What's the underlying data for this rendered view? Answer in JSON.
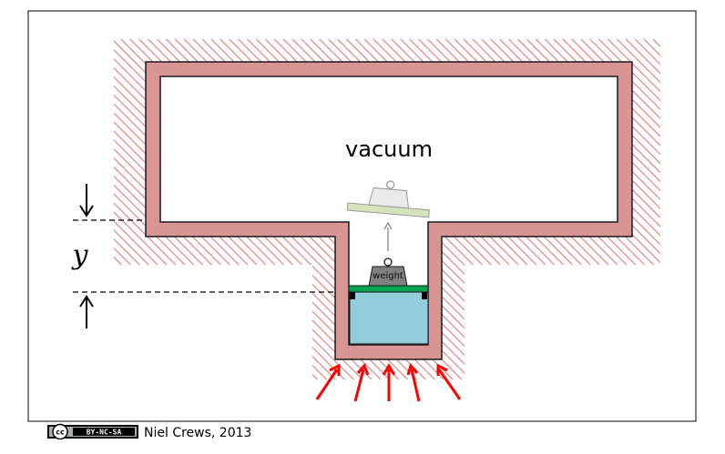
{
  "diagram": {
    "chamber_label": "vacuum",
    "weight_label": "weight",
    "height_symbol": "y"
  },
  "credit": {
    "license_logo": "cc",
    "license_badge": "BY-NC-SA",
    "author_year": "Niel Crews, 2013"
  },
  "colors": {
    "wall_fill": "#d99594",
    "wall_stroke": "#1a1a1a",
    "hatch": "#e07a7a",
    "fluid": "#92cddc",
    "piston": "#00a550",
    "weight": "#808080",
    "ghost_plate": "#d6e3bc",
    "ghost_weight": "#e6e6e6",
    "pressure_arrows": "#ff0000"
  }
}
